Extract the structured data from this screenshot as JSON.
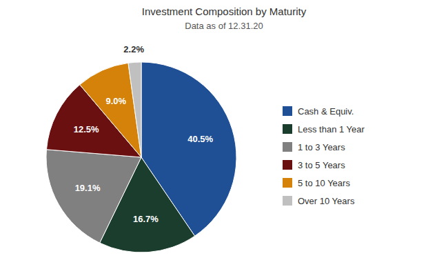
{
  "chart_data": {
    "type": "pie",
    "title": "Investment Composition by Maturity",
    "subtitle": "Data as of 12.31.20",
    "categories": [
      "Cash & Equiv.",
      "Less than 1 Year",
      "1 to 3 Years",
      "3 to 5 Years",
      "5 to 10 Years",
      "Over 10 Years"
    ],
    "values": [
      40.5,
      16.7,
      19.1,
      12.5,
      9.0,
      2.2
    ],
    "value_labels": [
      "40.5%",
      "16.7%",
      "19.1%",
      "12.5%",
      "9.0%",
      "2.2%"
    ],
    "colors": [
      "#1F5096",
      "#1A3D2E",
      "#808080",
      "#6B1010",
      "#D4820A",
      "#C0C0C0"
    ],
    "data_labels": true,
    "legend": "right"
  }
}
